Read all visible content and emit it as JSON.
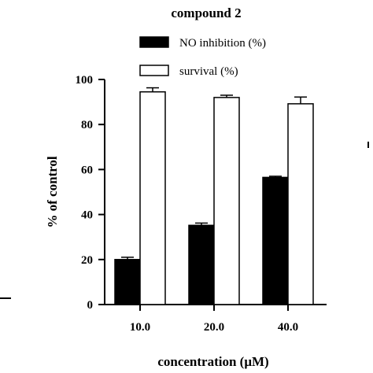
{
  "chart_data": {
    "type": "bar",
    "title": "compound 2",
    "xlabel": "concentration (μM)",
    "ylabel": "% of control",
    "categories": [
      "10.0",
      "20.0",
      "40.0"
    ],
    "ylim": [
      0,
      100
    ],
    "yticks": [
      "0",
      "20",
      "40",
      "60",
      "80",
      "100"
    ],
    "series": [
      {
        "name": "NO inhibition (%)",
        "values": [
          20.0,
          35.2,
          56.5
        ],
        "errors": [
          1.0,
          1.0,
          0.5
        ],
        "color": "#000000"
      },
      {
        "name": "survival (%)",
        "values": [
          94.5,
          92.0,
          89.2
        ],
        "errors": [
          1.8,
          1.0,
          3.0
        ],
        "color": "#ffffff"
      }
    ],
    "legend_position": "top",
    "grid": false
  }
}
